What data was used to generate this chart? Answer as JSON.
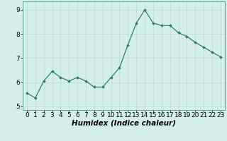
{
  "x": [
    0,
    1,
    2,
    3,
    4,
    5,
    6,
    7,
    8,
    9,
    10,
    11,
    12,
    13,
    14,
    15,
    16,
    17,
    18,
    19,
    20,
    21,
    22,
    23
  ],
  "y": [
    5.55,
    5.35,
    6.05,
    6.45,
    6.2,
    6.05,
    6.2,
    6.05,
    5.8,
    5.8,
    6.2,
    6.6,
    7.55,
    8.45,
    9.0,
    8.45,
    8.35,
    8.35,
    8.05,
    7.9,
    7.65,
    7.45,
    7.25,
    7.05
  ],
  "line_color": "#2e7d6e",
  "marker": "D",
  "marker_size": 2.0,
  "bg_color": "#d4eeea",
  "grid_color": "#c0ddd8",
  "xlabel": "Humidex (Indice chaleur)",
  "xlim": [
    -0.5,
    23.5
  ],
  "ylim": [
    4.85,
    9.35
  ],
  "yticks": [
    5,
    6,
    7,
    8,
    9
  ],
  "xticks": [
    0,
    1,
    2,
    3,
    4,
    5,
    6,
    7,
    8,
    9,
    10,
    11,
    12,
    13,
    14,
    15,
    16,
    17,
    18,
    19,
    20,
    21,
    22,
    23
  ],
  "xlabel_fontsize": 7.5,
  "tick_fontsize": 6.5
}
